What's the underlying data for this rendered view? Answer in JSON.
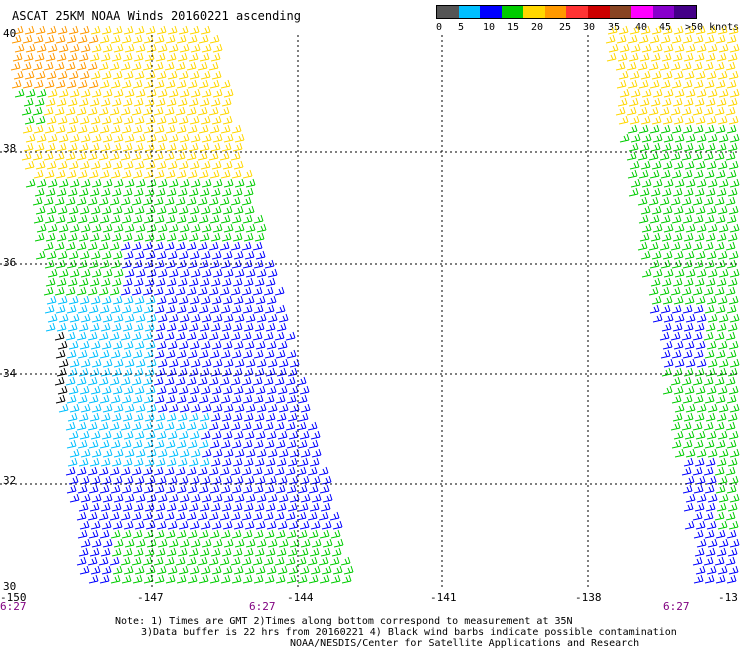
{
  "title": "ASCAT 25KM NOAA Winds 20160221 ascending",
  "legend": {
    "colors": [
      "#555555",
      "#00bfff",
      "#0000ff",
      "#00cc00",
      "#ffd700",
      "#ff9900",
      "#ff3333",
      "#cc0000",
      "#884422",
      "#ff00ff",
      "#8800cc",
      "#440088"
    ],
    "labels": [
      "0",
      "5",
      "10",
      "15",
      "20",
      "25",
      "30",
      "35",
      "40",
      "45",
      ">50 knots"
    ]
  },
  "axes": {
    "lat_labels": [
      "40",
      "38",
      "36",
      "34",
      "32",
      "30"
    ],
    "lon_labels": [
      "-150",
      "-147",
      "-144",
      "-141",
      "-138",
      "-13"
    ]
  },
  "times": [
    "6:27",
    "6:27",
    "6:27"
  ],
  "notes": [
    "Note: 1) Times are GMT 2)Times along bottom correspond to measurement at 35N",
    "3)Data buffer is 22 hrs from 20160221 4) Black wind barbs indicate possible contamination",
    "NOAA/NESDIS/Center for Satellite Applications and Research"
  ]
}
